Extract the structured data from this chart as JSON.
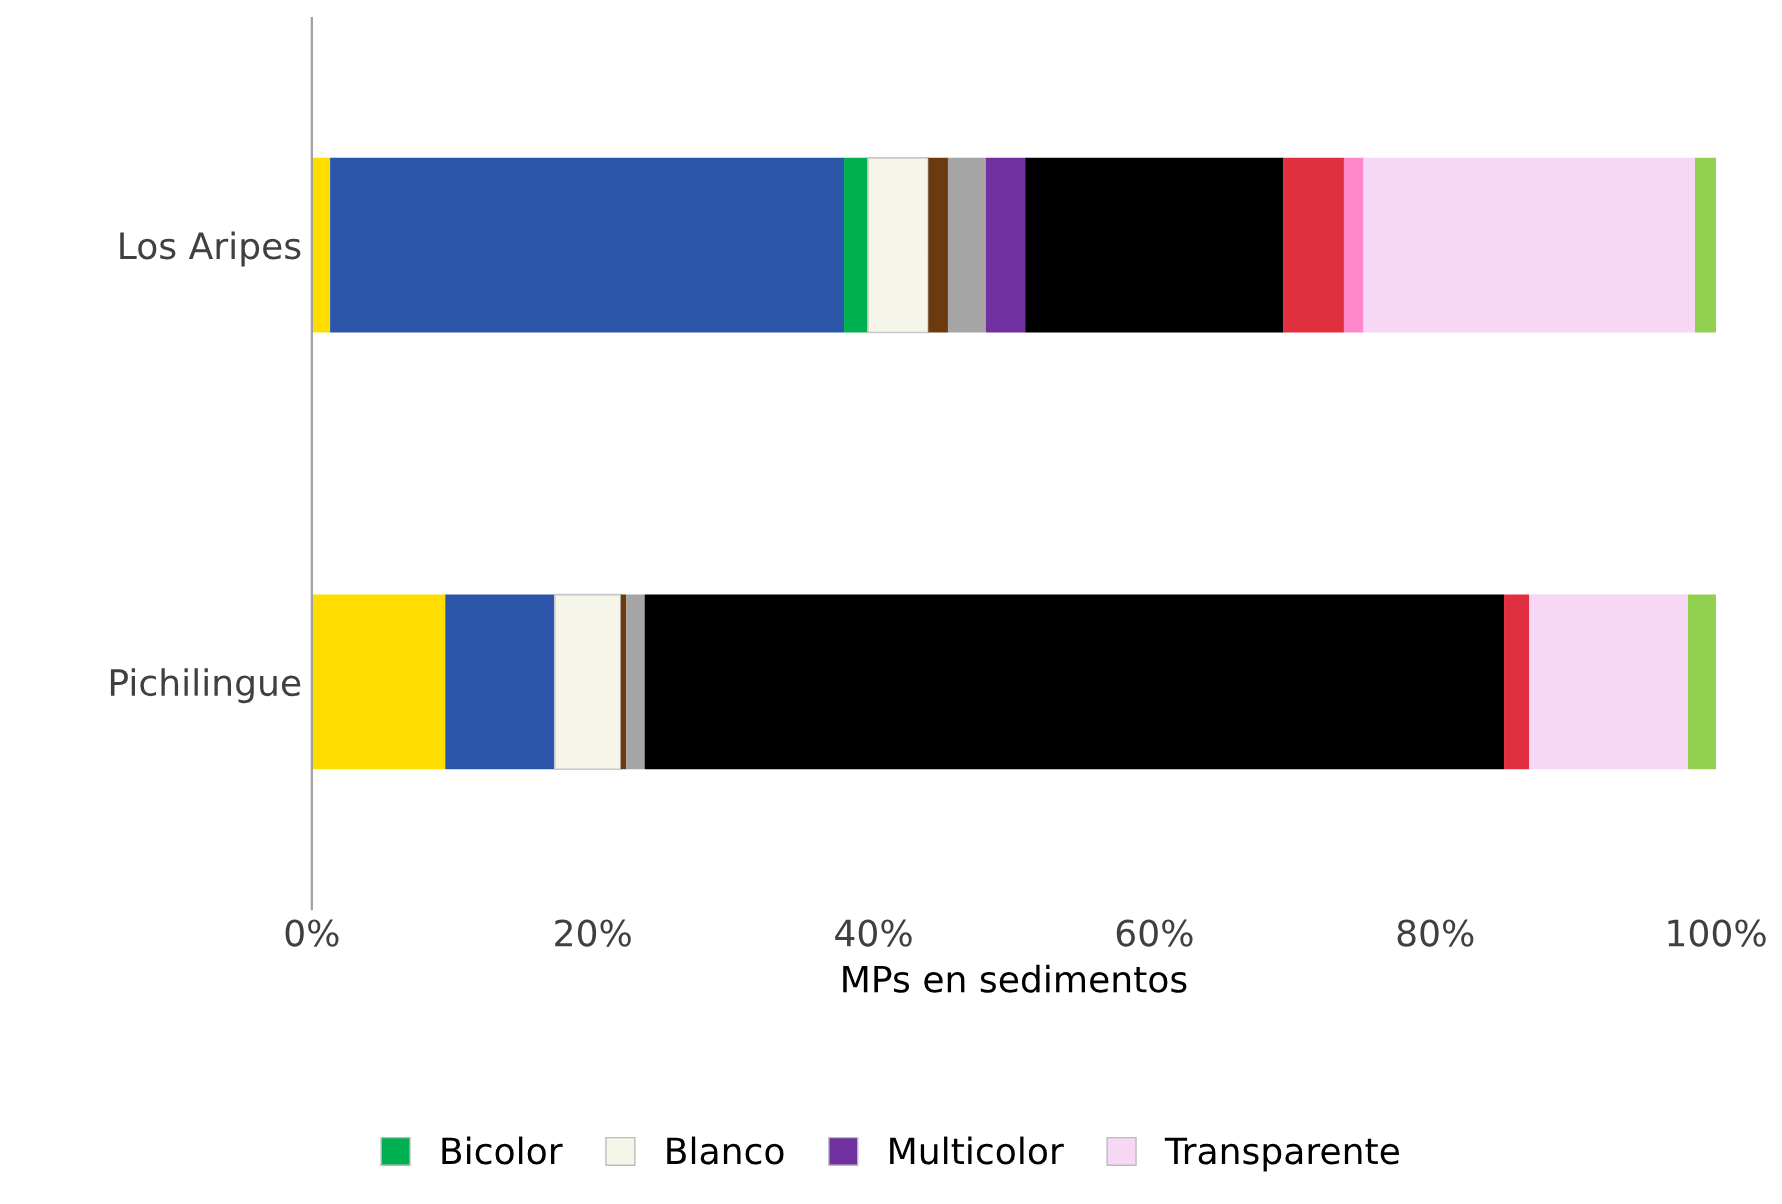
{
  "chart_data": {
    "type": "bar",
    "orientation": "horizontal",
    "stacked": true,
    "xlabel": "MPs en sedimentos",
    "categories": [
      "Los Aripes",
      "Pichilingue"
    ],
    "series": [
      {
        "color": "#ffdd00",
        "values": [
          1.3,
          9.5
        ]
      },
      {
        "color": "#2a55a8",
        "values": [
          36.6,
          7.8
        ]
      },
      {
        "name": "Bicolor",
        "color": "#00b050",
        "values": [
          1.7,
          0
        ]
      },
      {
        "name": "Blanco",
        "color": "#f5f5ea",
        "values": [
          4.3,
          4.7
        ]
      },
      {
        "color": "#6b3a0e",
        "values": [
          1.4,
          0.4
        ]
      },
      {
        "color": "#a5a5a5",
        "values": [
          2.7,
          1.3
        ]
      },
      {
        "name": "Multicolor",
        "color": "#7030a0",
        "values": [
          2.8,
          0
        ]
      },
      {
        "color": "#000000",
        "values": [
          18.4,
          61.2
        ]
      },
      {
        "color": "#e03040",
        "values": [
          4.3,
          1.8
        ]
      },
      {
        "color": "#ff88cc",
        "values": [
          1.4,
          0
        ]
      },
      {
        "name": "Transparente",
        "color": "#f6d8f6",
        "values": [
          23.6,
          11.3
        ]
      },
      {
        "color": "#92d050",
        "values": [
          1.5,
          2.0
        ]
      }
    ],
    "xlim": [
      0,
      100
    ],
    "xticks": [
      {
        "value": 0,
        "label": "0%"
      },
      {
        "value": 20,
        "label": "20%"
      },
      {
        "value": 40,
        "label": "40%"
      },
      {
        "value": 60,
        "label": "60%"
      },
      {
        "value": 80,
        "label": "80%"
      },
      {
        "value": 100,
        "label": "100%"
      }
    ],
    "grid": false,
    "legend": "bottom"
  }
}
